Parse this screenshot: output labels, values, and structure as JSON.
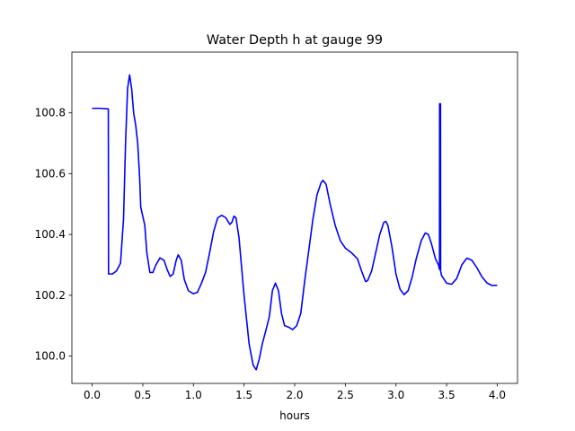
{
  "chart_data": {
    "type": "line",
    "title": "Water Depth h at gauge 99",
    "xlabel": "hours",
    "ylabel": "",
    "xlim": [
      -0.2,
      4.2
    ],
    "ylim": [
      99.91,
      101.0
    ],
    "xticks": [
      0.0,
      0.5,
      1.0,
      1.5,
      2.0,
      2.5,
      3.0,
      3.5,
      4.0
    ],
    "xtick_labels": [
      "0.0",
      "0.5",
      "1.0",
      "1.5",
      "2.0",
      "2.5",
      "3.0",
      "3.5",
      "4.0"
    ],
    "yticks": [
      100.0,
      100.2,
      100.4,
      100.6,
      100.8
    ],
    "ytick_labels": [
      "100.0",
      "100.2",
      "100.4",
      "100.6",
      "100.8"
    ],
    "grid": false,
    "series": [
      {
        "color": "#0000ff",
        "points": [
          [
            0.0,
            100.815
          ],
          [
            0.08,
            100.815
          ],
          [
            0.16,
            100.813
          ],
          [
            0.162,
            100.27
          ],
          [
            0.2,
            100.27
          ],
          [
            0.24,
            100.28
          ],
          [
            0.28,
            100.305
          ],
          [
            0.31,
            100.45
          ],
          [
            0.33,
            100.7
          ],
          [
            0.35,
            100.88
          ],
          [
            0.37,
            100.925
          ],
          [
            0.39,
            100.88
          ],
          [
            0.41,
            100.8
          ],
          [
            0.43,
            100.76
          ],
          [
            0.45,
            100.7
          ],
          [
            0.47,
            100.58
          ],
          [
            0.48,
            100.49
          ],
          [
            0.5,
            100.46
          ],
          [
            0.52,
            100.43
          ],
          [
            0.54,
            100.34
          ],
          [
            0.57,
            100.275
          ],
          [
            0.6,
            100.275
          ],
          [
            0.63,
            100.3
          ],
          [
            0.67,
            100.323
          ],
          [
            0.71,
            100.315
          ],
          [
            0.74,
            100.285
          ],
          [
            0.77,
            100.262
          ],
          [
            0.8,
            100.27
          ],
          [
            0.83,
            100.315
          ],
          [
            0.85,
            100.333
          ],
          [
            0.88,
            100.315
          ],
          [
            0.91,
            100.252
          ],
          [
            0.95,
            100.215
          ],
          [
            1.0,
            100.205
          ],
          [
            1.04,
            100.21
          ],
          [
            1.08,
            100.24
          ],
          [
            1.12,
            100.275
          ],
          [
            1.16,
            100.34
          ],
          [
            1.2,
            100.41
          ],
          [
            1.24,
            100.455
          ],
          [
            1.28,
            100.463
          ],
          [
            1.32,
            100.455
          ],
          [
            1.36,
            100.433
          ],
          [
            1.38,
            100.44
          ],
          [
            1.4,
            100.46
          ],
          [
            1.42,
            100.455
          ],
          [
            1.45,
            100.39
          ],
          [
            1.5,
            100.2
          ],
          [
            1.55,
            100.04
          ],
          [
            1.59,
            99.97
          ],
          [
            1.62,
            99.955
          ],
          [
            1.65,
            99.99
          ],
          [
            1.68,
            100.04
          ],
          [
            1.72,
            100.09
          ],
          [
            1.75,
            100.13
          ],
          [
            1.78,
            100.215
          ],
          [
            1.81,
            100.24
          ],
          [
            1.84,
            100.215
          ],
          [
            1.87,
            100.14
          ],
          [
            1.9,
            100.1
          ],
          [
            1.94,
            100.095
          ],
          [
            1.98,
            100.087
          ],
          [
            2.02,
            100.1
          ],
          [
            2.06,
            100.14
          ],
          [
            2.1,
            100.25
          ],
          [
            2.14,
            100.35
          ],
          [
            2.18,
            100.45
          ],
          [
            2.22,
            100.53
          ],
          [
            2.26,
            100.57
          ],
          [
            2.28,
            100.578
          ],
          [
            2.31,
            100.565
          ],
          [
            2.35,
            100.5
          ],
          [
            2.4,
            100.43
          ],
          [
            2.45,
            100.38
          ],
          [
            2.5,
            100.355
          ],
          [
            2.56,
            100.34
          ],
          [
            2.62,
            100.32
          ],
          [
            2.66,
            100.28
          ],
          [
            2.7,
            100.245
          ],
          [
            2.72,
            100.248
          ],
          [
            2.76,
            100.28
          ],
          [
            2.8,
            100.34
          ],
          [
            2.84,
            100.4
          ],
          [
            2.88,
            100.44
          ],
          [
            2.9,
            100.443
          ],
          [
            2.92,
            100.43
          ],
          [
            2.96,
            100.36
          ],
          [
            3.0,
            100.27
          ],
          [
            3.04,
            100.22
          ],
          [
            3.08,
            100.202
          ],
          [
            3.12,
            100.215
          ],
          [
            3.16,
            100.26
          ],
          [
            3.2,
            100.32
          ],
          [
            3.25,
            100.38
          ],
          [
            3.29,
            100.405
          ],
          [
            3.32,
            100.4
          ],
          [
            3.35,
            100.37
          ],
          [
            3.39,
            100.32
          ],
          [
            3.42,
            100.3
          ],
          [
            3.43,
            100.285
          ],
          [
            3.431,
            100.83
          ],
          [
            3.44,
            100.83
          ],
          [
            3.441,
            100.28
          ],
          [
            3.45,
            100.265
          ],
          [
            3.5,
            100.24
          ],
          [
            3.55,
            100.236
          ],
          [
            3.6,
            100.255
          ],
          [
            3.65,
            100.3
          ],
          [
            3.7,
            100.322
          ],
          [
            3.75,
            100.315
          ],
          [
            3.8,
            100.29
          ],
          [
            3.85,
            100.26
          ],
          [
            3.9,
            100.24
          ],
          [
            3.95,
            100.232
          ],
          [
            4.0,
            100.233
          ]
        ]
      }
    ]
  }
}
